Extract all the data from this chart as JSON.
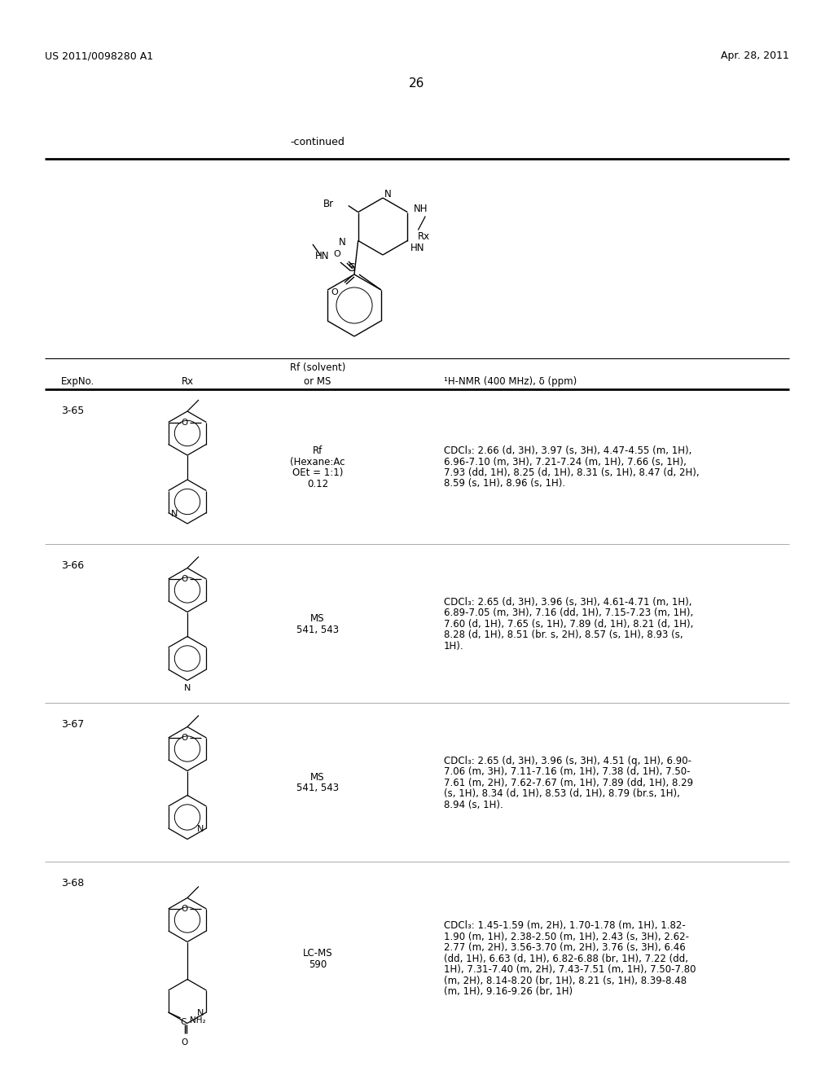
{
  "page_number": "26",
  "patent_number": "US 2011/0098280 A1",
  "patent_date": "Apr. 28, 2011",
  "continued_label": "-continued",
  "header_rf": "Rf (solvent)",
  "header_col1": "ExpNo.",
  "header_col2": "Rx",
  "header_col3": "or MS",
  "header_col4": "¹H-NMR (400 MHz), δ (ppm)",
  "rows": [
    {
      "exp": "3-65",
      "ms_rf_lines": [
        "Rf",
        "(Hexane:Ac",
        "OEt = 1:1)",
        "0.12"
      ],
      "nmr_lines": [
        "CDCl₃: 2.66 (d, 3H), 3.97 (s, 3H), 4.47-4.55 (m, 1H),",
        "6.96-7.10 (m, 3H), 7.21-7.24 (m, 1H), 7.66 (s, 1H),",
        "7.93 (dd, 1H), 8.25 (d, 1H), 8.31 (s, 1H), 8.47 (d, 2H),",
        "8.59 (s, 1H), 8.96 (s, 1H)."
      ],
      "mol_type": 1
    },
    {
      "exp": "3-66",
      "ms_rf_lines": [
        "MS",
        "541, 543"
      ],
      "nmr_lines": [
        "CDCl₃: 2.65 (d, 3H), 3.96 (s, 3H), 4.61-4.71 (m, 1H),",
        "6.89-7.05 (m, 3H), 7.16 (dd, 1H), 7.15-7.23 (m, 1H),",
        "7.60 (d, 1H), 7.65 (s, 1H), 7.89 (d, 1H), 8.21 (d, 1H),",
        "8.28 (d, 1H), 8.51 (br. s, 2H), 8.57 (s, 1H), 8.93 (s,",
        "1H)."
      ],
      "mol_type": 2
    },
    {
      "exp": "3-67",
      "ms_rf_lines": [
        "MS",
        "541, 543"
      ],
      "nmr_lines": [
        "CDCl₃: 2.65 (d, 3H), 3.96 (s, 3H), 4.51 (q, 1H), 6.90-",
        "7.06 (m, 3H), 7.11-7.16 (m, 1H), 7.38 (d, 1H), 7.50-",
        "7.61 (m, 2H), 7.62-7.67 (m, 1H), 7.89 (dd, 1H), 8.29",
        "(s, 1H), 8.34 (d, 1H), 8.53 (d, 1H), 8.79 (br.s, 1H),",
        "8.94 (s, 1H)."
      ],
      "mol_type": 3
    },
    {
      "exp": "3-68",
      "ms_rf_lines": [
        "LC-MS",
        "590"
      ],
      "nmr_lines": [
        "CDCl₃: 1.45-1.59 (m, 2H), 1.70-1.78 (m, 1H), 1.82-",
        "1.90 (m, 1H), 2.38-2.50 (m, 1H), 2.43 (s, 3H), 2.62-",
        "2.77 (m, 2H), 3.56-3.70 (m, 2H), 3.76 (s, 3H), 6.46",
        "(dd, 1H), 6.63 (d, 1H), 6.82-6.88 (br, 1H), 7.22 (dd,",
        "1H), 7.31-7.40 (m, 2H), 7.43-7.51 (m, 1H), 7.50-7.80",
        "(m, 2H), 8.14-8.20 (br, 1H), 8.21 (s, 1H), 8.39-8.48",
        "(m, 1H), 9.16-9.26 (br, 1H)"
      ],
      "mol_type": 4
    }
  ],
  "background_color": "#ffffff"
}
